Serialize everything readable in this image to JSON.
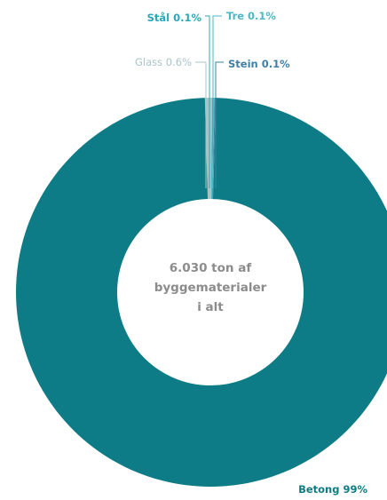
{
  "chart_data": {
    "type": "donut",
    "center_label": [
      "6.030 ton af",
      "byggematerialer",
      "i alt"
    ],
    "slices": [
      {
        "name": "Betong",
        "value": 99.0,
        "label": "Betong  99%",
        "color": "#0e7c86"
      },
      {
        "name": "Glass",
        "value": 0.6,
        "label": "Glass 0.6%",
        "color": "#a9c4c7"
      },
      {
        "name": "Stål",
        "value": 0.1,
        "label": "Stål  0.1%",
        "color": "#2aa8b8"
      },
      {
        "name": "Tre",
        "value": 0.1,
        "label": "Tre 0.1%",
        "color": "#4bb8c4"
      },
      {
        "name": "Stein",
        "value": 0.1,
        "label": "Stein 0.1%",
        "color": "#3f7fa5"
      }
    ]
  }
}
